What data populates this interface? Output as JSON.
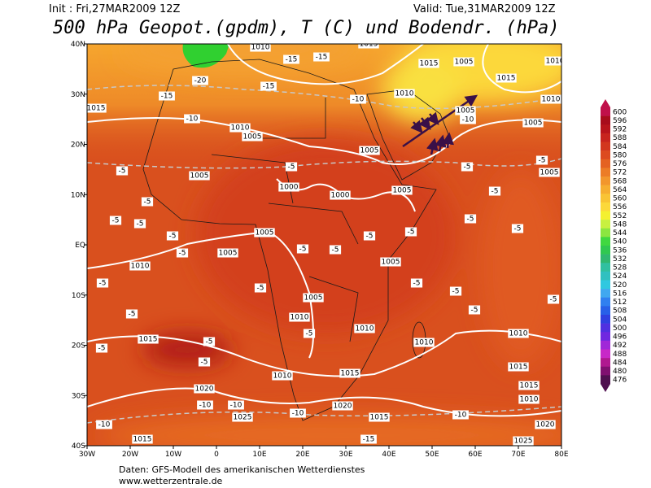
{
  "header": {
    "init": "Init : Fri,27MAR2009 12Z",
    "valid": "Valid: Tue,31MAR2009 12Z",
    "title": "500 hPa Geopot.(gpdm), T (C) und Bodendr. (hPa)"
  },
  "map": {
    "lat_labels": [
      "40N",
      "30N",
      "20N",
      "10N",
      "EQ",
      "10S",
      "20S",
      "30S",
      "40S"
    ],
    "lon_labels": [
      "30W",
      "20W",
      "10W",
      "0",
      "10E",
      "20E",
      "30E",
      "40E",
      "50E",
      "60E",
      "70E",
      "80E"
    ],
    "labels": [
      "1010",
      "-15",
      "-15",
      "1015",
      "1015",
      "1005",
      "1015",
      "1010",
      "-20",
      "1015",
      "-15",
      "-15",
      "-10",
      "1010",
      "1005",
      "1005",
      "-10",
      "1010",
      "1005",
      "1005",
      "-10",
      "1010",
      "-5",
      "1005",
      "-5",
      "1000",
      "1000",
      "1005",
      "-5",
      "-5",
      "-5",
      "1005",
      "-5",
      "-5",
      "-5",
      "-5",
      "-5",
      "1005",
      "1005",
      "-5",
      "-5",
      "1005",
      "-5",
      "-5",
      "-5",
      "-5",
      "1010",
      "-5",
      "-5",
      "1005",
      "-5",
      "-5",
      "-5",
      "-5",
      "1010",
      "-5",
      "1010",
      "-5",
      "1015",
      "-5",
      "-5",
      "1010",
      "1010",
      "-5",
      "1010",
      "1015",
      "1015",
      "1020",
      "1015",
      "1010",
      "-10",
      "-10",
      "1025",
      "-10",
      "1020",
      "1015",
      "-10",
      "1020",
      "1015",
      "-15",
      "1025",
      "-10"
    ]
  },
  "colorbar": {
    "values": [
      600,
      596,
      592,
      588,
      584,
      580,
      576,
      572,
      568,
      564,
      560,
      556,
      552,
      548,
      544,
      540,
      536,
      532,
      528,
      524,
      520,
      516,
      512,
      508,
      504,
      500,
      496,
      492,
      488,
      484,
      480,
      476
    ],
    "colors": [
      "#c0104a",
      "#a80c1c",
      "#b8141c",
      "#c8241e",
      "#d2361e",
      "#dc4a20",
      "#e46222",
      "#ec7c26",
      "#f2962c",
      "#f6ae30",
      "#f9c434",
      "#fcd83a",
      "#f4f030",
      "#c8f040",
      "#8ce640",
      "#40d840",
      "#30c850",
      "#30b870",
      "#30c0a0",
      "#30c0c0",
      "#30c8e0",
      "#40a8f0",
      "#3080f0",
      "#2860e8",
      "#3040e0",
      "#5030e0",
      "#7028e0",
      "#a028d8",
      "#c828c8",
      "#b01890",
      "#801070",
      "#501050"
    ]
  },
  "footer": {
    "line1": "Daten: GFS-Modell des amerikanischen Wetterdienstes",
    "line2": "www.wetterzentrale.de"
  }
}
